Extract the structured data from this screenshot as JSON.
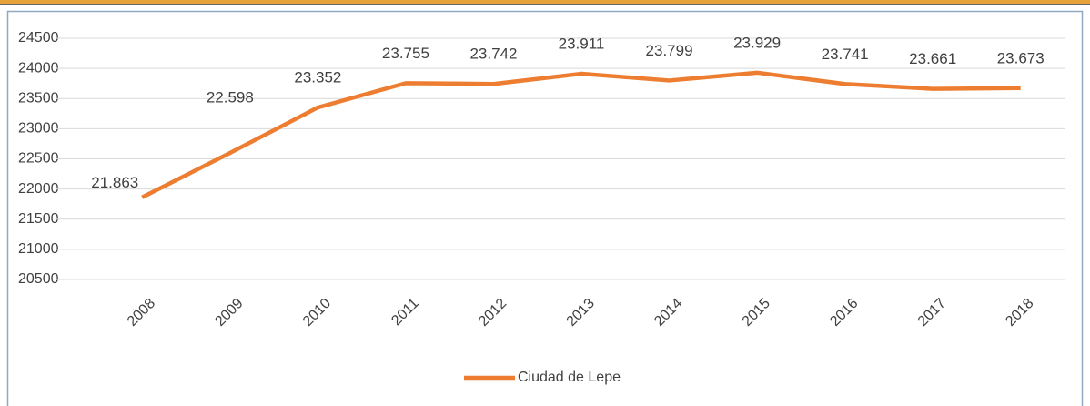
{
  "chart_data": {
    "type": "line",
    "categories": [
      "2008",
      "2009",
      "2010",
      "2011",
      "2012",
      "2013",
      "2014",
      "2015",
      "2016",
      "2017",
      "2018"
    ],
    "series": [
      {
        "name": "Ciudad de Lepe",
        "color": "#ed7d31",
        "values": [
          21863,
          22598,
          23352,
          23755,
          23742,
          23911,
          23799,
          23929,
          23741,
          23661,
          23673
        ],
        "value_labels": [
          "21.863",
          "22.598",
          "23.352",
          "23.755",
          "23.742",
          "23.911",
          "23.799",
          "23.929",
          "23.741",
          "23.661",
          "23.673"
        ]
      }
    ],
    "ylim": [
      20500,
      24500
    ],
    "yticks": [
      20500,
      21000,
      21500,
      22000,
      22500,
      23000,
      23500,
      24000,
      24500
    ],
    "grid": true,
    "legend": "bottom"
  }
}
